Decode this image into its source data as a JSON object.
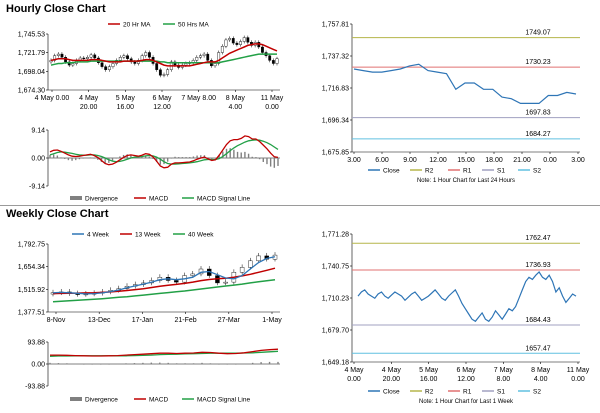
{
  "sections": {
    "hourly_title": "Hourly Close Chart",
    "weekly_title": "Weekly Close Chart"
  },
  "colors": {
    "ma_short": "#c00000",
    "ma_long": "#22a046",
    "close": "#2e75b6",
    "r2": "#b5b54a",
    "r1": "#e07070",
    "s1": "#a0a0c0",
    "s2": "#60c0e0",
    "divergence": "#808080",
    "candle_up": "#ffffff",
    "candle_down": "#000000"
  },
  "chart_data": [
    {
      "id": "hourly_price",
      "type": "candlestick",
      "legend": [
        "20 Hr MA",
        "50 Hrs MA"
      ],
      "y_ticks": [
        "1,745.53",
        "1,721.79",
        "1,698.04",
        "1,674.30"
      ],
      "ylim": [
        1674.3,
        1745.53
      ],
      "x_ticks": [
        [
          "4 May 0.00",
          ""
        ],
        [
          "4 May",
          "20.00"
        ],
        [
          "5 May",
          "16.00"
        ],
        [
          "6 May",
          "12.00"
        ],
        [
          "7 May 8.00",
          ""
        ],
        [
          "8 May",
          "4.00"
        ],
        [
          "11 May",
          "0.00"
        ]
      ],
      "close": [
        1712,
        1718,
        1720,
        1716,
        1710,
        1706,
        1708,
        1712,
        1715,
        1714,
        1716,
        1719,
        1715,
        1709,
        1704,
        1700,
        1704,
        1708,
        1712,
        1716,
        1718,
        1714,
        1710,
        1708,
        1712,
        1718,
        1722,
        1716,
        1708,
        1700,
        1693,
        1694,
        1700,
        1710,
        1706,
        1703,
        1706,
        1708,
        1709,
        1712,
        1716,
        1718,
        1720,
        1712,
        1705,
        1708,
        1722,
        1730,
        1738,
        1740,
        1734,
        1732,
        1736,
        1741,
        1735,
        1731,
        1735,
        1729,
        1722,
        1718,
        1712,
        1708,
        1714
      ],
      "ma20": [
        1712,
        1713,
        1714,
        1714,
        1714,
        1713,
        1712,
        1712,
        1712,
        1712,
        1712,
        1713,
        1713,
        1713,
        1712,
        1711,
        1710,
        1710,
        1710,
        1710,
        1711,
        1711,
        1711,
        1711,
        1711,
        1712,
        1713,
        1713,
        1712,
        1710,
        1708,
        1706,
        1705,
        1705,
        1705,
        1705,
        1705,
        1705,
        1705,
        1706,
        1707,
        1708,
        1709,
        1710,
        1710,
        1710,
        1712,
        1715,
        1718,
        1721,
        1723,
        1725,
        1727,
        1729,
        1731,
        1732,
        1733,
        1733,
        1732,
        1730,
        1728,
        1726,
        1724
      ],
      "ma50": [
        1706,
        1707,
        1708,
        1708,
        1709,
        1709,
        1709,
        1710,
        1710,
        1710,
        1710,
        1711,
        1711,
        1711,
        1711,
        1711,
        1711,
        1711,
        1711,
        1711,
        1711,
        1711,
        1711,
        1711,
        1711,
        1711,
        1711,
        1711,
        1711,
        1711,
        1710,
        1710,
        1709,
        1709,
        1709,
        1709,
        1709,
        1709,
        1709,
        1709,
        1709,
        1709,
        1709,
        1709,
        1709,
        1709,
        1709,
        1710,
        1711,
        1712,
        1713,
        1714,
        1715,
        1716,
        1717,
        1718,
        1719,
        1720,
        1720,
        1720,
        1720,
        1720,
        1720
      ]
    },
    {
      "id": "hourly_macd",
      "type": "line+bar",
      "legend": [
        "Divergence",
        "MACD",
        "MACD Signal Line"
      ],
      "y_ticks": [
        "9.14",
        "0.00",
        "-9.14"
      ],
      "ylim": [
        -9.14,
        9.14
      ],
      "macd": [
        2.0,
        2.5,
        2.6,
        2.2,
        1.6,
        1.0,
        0.6,
        0.5,
        0.6,
        0.8,
        1.0,
        1.2,
        0.8,
        0.2,
        -0.8,
        -1.8,
        -2.2,
        -2.0,
        -1.4,
        -0.6,
        0.2,
        0.8,
        1.0,
        0.8,
        0.6,
        0.9,
        1.4,
        1.2,
        0.4,
        -1.0,
        -2.6,
        -3.2,
        -3.0,
        -2.0,
        -1.6,
        -1.6,
        -1.5,
        -1.4,
        -1.3,
        -0.9,
        -0.4,
        0.0,
        0.3,
        -0.3,
        -0.8,
        -0.6,
        0.9,
        2.6,
        4.4,
        5.6,
        6.0,
        6.0,
        6.4,
        7.2,
        7.0,
        6.2,
        6.2,
        5.4,
        4.2,
        3.0,
        1.6,
        0.4,
        0.2
      ],
      "signal": [
        1.0,
        1.4,
        1.8,
        2.0,
        1.9,
        1.7,
        1.5,
        1.2,
        1.0,
        0.9,
        0.9,
        1.0,
        1.0,
        0.8,
        0.5,
        0.0,
        -0.6,
        -1.0,
        -1.2,
        -1.1,
        -0.8,
        -0.4,
        0.0,
        0.3,
        0.4,
        0.5,
        0.7,
        0.8,
        0.7,
        0.3,
        -0.4,
        -1.2,
        -1.8,
        -2.0,
        -2.0,
        -1.9,
        -1.8,
        -1.7,
        -1.6,
        -1.4,
        -1.2,
        -0.9,
        -0.6,
        -0.5,
        -0.5,
        -0.5,
        -0.2,
        0.5,
        1.4,
        2.4,
        3.3,
        4.0,
        4.6,
        5.2,
        5.6,
        5.8,
        5.9,
        5.8,
        5.5,
        5.0,
        4.4,
        3.6,
        2.8
      ]
    },
    {
      "id": "hourly_close",
      "type": "line",
      "legend": [
        "Close",
        "R2",
        "R1",
        "S1",
        "S2"
      ],
      "y_ticks": [
        "1,757.81",
        "1,737.32",
        "1,716.83",
        "1,696.34",
        "1,675.85"
      ],
      "ylim": [
        1675.85,
        1757.81
      ],
      "x_ticks": [
        "3.00",
        "6.00",
        "9.00",
        "12.00",
        "15.00",
        "18.00",
        "21.00",
        "0.00",
        "3.00"
      ],
      "levels": {
        "R2": 1749.07,
        "R1": 1730.23,
        "S1": 1697.83,
        "S2": 1684.27
      },
      "level_labels": {
        "R2": "1749.07",
        "R1": "1730.23",
        "S1": "1697.83",
        "S2": "1684.27"
      },
      "note": "Note: 1 Hour Chart for Last 24 Hours",
      "values": [
        1729,
        1728,
        1727,
        1727,
        1728,
        1729,
        1731,
        1732,
        1728,
        1727,
        1726,
        1716,
        1720,
        1720,
        1716,
        1716,
        1711,
        1710,
        1707,
        1707,
        1707,
        1712,
        1712,
        1714,
        1713
      ]
    },
    {
      "id": "weekly_price",
      "type": "candlestick",
      "legend": [
        "4 Week",
        "13 Week",
        "40 Week"
      ],
      "y_ticks": [
        "1,792.75",
        "1,654.34",
        "1,515.92",
        "1,377.51"
      ],
      "ylim": [
        1377.51,
        1792.75
      ],
      "x_ticks": [
        "8-Nov",
        "13-Dec",
        "17-Jan",
        "21-Feb",
        "27-Mar",
        "1-May"
      ],
      "close": [
        1495,
        1500,
        1490,
        1485,
        1488,
        1492,
        1500,
        1510,
        1520,
        1535,
        1545,
        1555,
        1570,
        1590,
        1570,
        1560,
        1600,
        1610,
        1640,
        1600,
        1555,
        1560,
        1620,
        1650,
        1690,
        1720,
        1700,
        1725
      ],
      "ma4": [
        1495,
        1497,
        1495,
        1492,
        1488,
        1490,
        1494,
        1502,
        1512,
        1525,
        1537,
        1548,
        1560,
        1575,
        1580,
        1575,
        1580,
        1590,
        1620,
        1625,
        1605,
        1585,
        1580,
        1600,
        1640,
        1680,
        1705,
        1715
      ],
      "ma13": [
        1490,
        1491,
        1492,
        1493,
        1494,
        1495,
        1497,
        1500,
        1504,
        1509,
        1514,
        1520,
        1527,
        1535,
        1541,
        1546,
        1552,
        1560,
        1569,
        1576,
        1580,
        1584,
        1590,
        1598,
        1608,
        1620,
        1632,
        1645
      ],
      "ma40": [
        1440,
        1443,
        1446,
        1449,
        1452,
        1455,
        1459,
        1463,
        1467,
        1471,
        1476,
        1481,
        1486,
        1491,
        1496,
        1501,
        1506,
        1512,
        1518,
        1524,
        1530,
        1536,
        1542,
        1548,
        1555,
        1562,
        1568,
        1574
      ]
    },
    {
      "id": "weekly_macd",
      "type": "line+bar",
      "legend": [
        "Divergence",
        "MACD",
        "MACD Signal Line"
      ],
      "y_ticks": [
        "93.88",
        "0.00",
        "-93.88"
      ],
      "ylim": [
        -93.88,
        93.88
      ],
      "macd": [
        38,
        38,
        37,
        36,
        35,
        34,
        34,
        35,
        36,
        38,
        40,
        42,
        44,
        46,
        46,
        45,
        46,
        47,
        50,
        49,
        46,
        44,
        45,
        48,
        53,
        58,
        61,
        63
      ],
      "signal": [
        33,
        34,
        34,
        35,
        35,
        35,
        35,
        35,
        35,
        35,
        36,
        37,
        38,
        40,
        41,
        42,
        43,
        44,
        45,
        46,
        46,
        46,
        46,
        47,
        48,
        50,
        52,
        54
      ]
    },
    {
      "id": "weekly_close",
      "type": "line",
      "legend": [
        "Close",
        "R2",
        "R1",
        "S1",
        "S2"
      ],
      "y_ticks": [
        "1,771.28",
        "1,740.75",
        "1,710.23",
        "1,679.70",
        "1,649.18"
      ],
      "ylim": [
        1649.18,
        1771.28
      ],
      "x_ticks": [
        [
          "4 May",
          "0.00"
        ],
        [
          "4 May",
          "20.00"
        ],
        [
          "5 May",
          "16.00"
        ],
        [
          "6 May",
          "12.00"
        ],
        [
          "7 May",
          "8.00"
        ],
        [
          "8 May",
          "4.00"
        ],
        [
          "11 May",
          "0.00"
        ]
      ],
      "levels": {
        "R2": 1762.47,
        "R1": 1736.93,
        "S1": 1684.43,
        "S2": 1657.47
      },
      "level_labels": {
        "R2": "1762.47",
        "R1": "1736.93",
        "S1": "1684.43",
        "S2": "1657.47"
      },
      "note": "Note: 1 Hour Chart for Last 1 Week",
      "values": [
        1712,
        1716,
        1718,
        1714,
        1712,
        1710,
        1714,
        1716,
        1712,
        1710,
        1713,
        1716,
        1714,
        1712,
        1708,
        1711,
        1714,
        1716,
        1712,
        1708,
        1710,
        1712,
        1715,
        1718,
        1714,
        1710,
        1708,
        1712,
        1715,
        1718,
        1712,
        1705,
        1700,
        1695,
        1690,
        1688,
        1692,
        1696,
        1690,
        1688,
        1692,
        1698,
        1694,
        1690,
        1695,
        1700,
        1698,
        1702,
        1710,
        1718,
        1726,
        1730,
        1728,
        1732,
        1735,
        1730,
        1728,
        1732,
        1726,
        1716,
        1720,
        1712,
        1706,
        1710,
        1714,
        1712
      ]
    }
  ]
}
